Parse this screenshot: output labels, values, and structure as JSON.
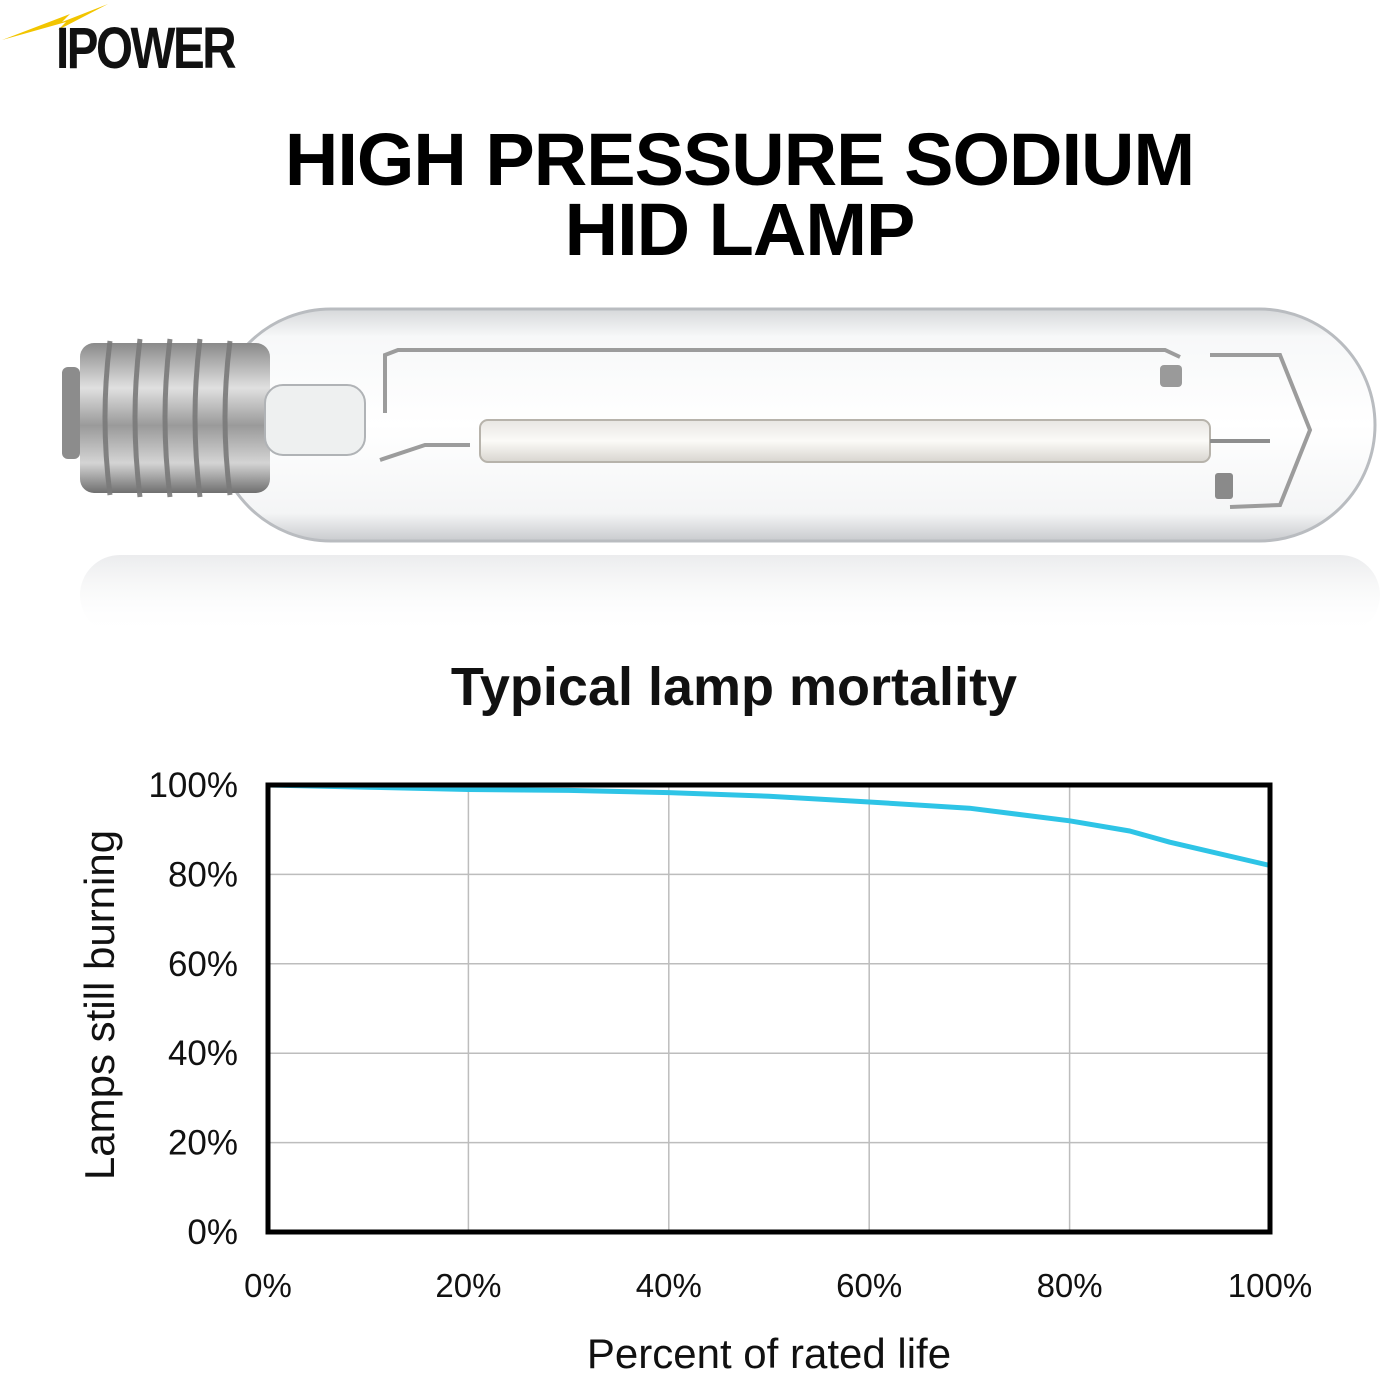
{
  "brand": {
    "name": "IPOWER"
  },
  "headline": {
    "line1": "HIGH PRESSURE SODIUM",
    "line2": "HID LAMP"
  },
  "product_image": {
    "icon": "hps-lamp-bulb-icon"
  },
  "colors": {
    "line": "#2ec4e6",
    "axis": "#000000",
    "grid": "#bdbdbd"
  },
  "chart_data": {
    "type": "line",
    "title": "Typical lamp mortality",
    "xlabel": "Percent of rated life",
    "ylabel": "Lamps still burning",
    "x_ticks": [
      "0%",
      "20%",
      "40%",
      "60%",
      "80%",
      "100%"
    ],
    "y_ticks": [
      "100%",
      "80%",
      "60%",
      "40%",
      "20%",
      "0%"
    ],
    "xlim": [
      0,
      100
    ],
    "ylim": [
      0,
      100
    ],
    "grid": true,
    "series": [
      {
        "x": [
          0,
          10,
          20,
          30,
          40,
          50,
          60,
          70,
          80,
          86,
          90,
          100
        ],
        "y": [
          100,
          99.5,
          99,
          98.8,
          98.3,
          97.5,
          96.2,
          94.8,
          92,
          89.7,
          87.2,
          82
        ]
      }
    ]
  }
}
